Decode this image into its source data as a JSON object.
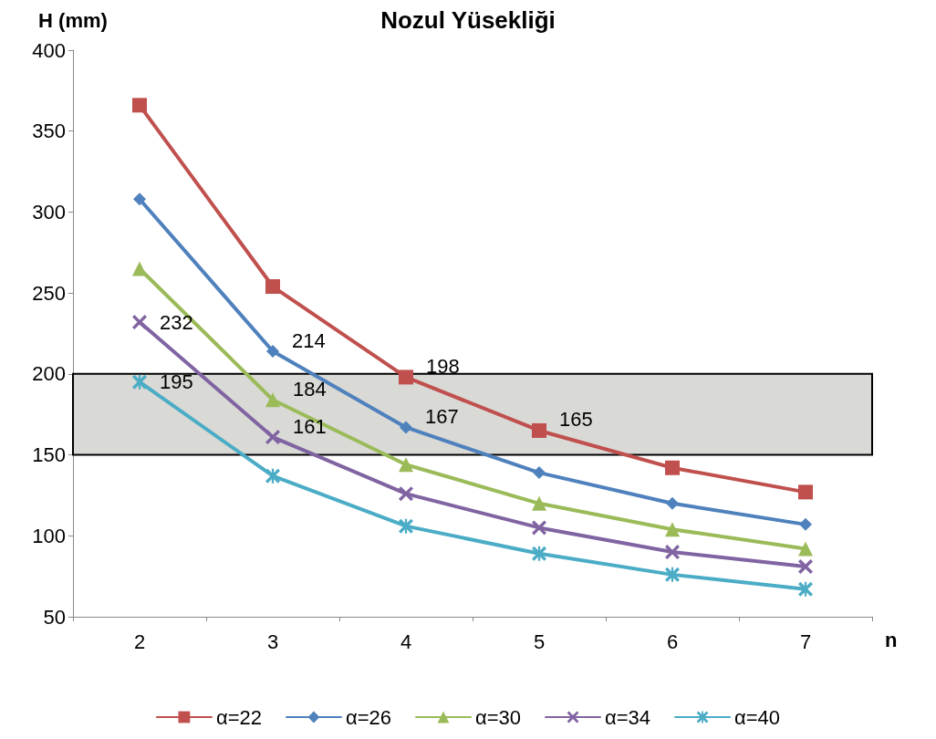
{
  "chart_data": {
    "type": "line",
    "title": "Nozul Yüsekliği",
    "ylabel": "H (mm)",
    "xlabel": "n",
    "categories": [
      "2",
      "3",
      "4",
      "5",
      "6",
      "7"
    ],
    "series": [
      {
        "name": "α=22",
        "color": "#c0504d",
        "marker": "square",
        "values": [
          366,
          254,
          198,
          165,
          142,
          127
        ],
        "value_labels": [
          null,
          null,
          "198",
          "165",
          null,
          null
        ]
      },
      {
        "name": "α=26",
        "color": "#4f81bd",
        "marker": "diamond",
        "values": [
          308,
          214,
          167,
          139,
          120,
          107
        ],
        "value_labels": [
          null,
          "214",
          "167",
          null,
          null,
          null
        ]
      },
      {
        "name": "α=30",
        "color": "#9bbb59",
        "marker": "triangle",
        "values": [
          265,
          184,
          144,
          120,
          104,
          92
        ],
        "value_labels": [
          null,
          "184",
          null,
          null,
          null,
          null
        ]
      },
      {
        "name": "α=34",
        "color": "#8064a2",
        "marker": "cross",
        "values": [
          232,
          161,
          126,
          105,
          90,
          81
        ],
        "value_labels": [
          "232",
          "161",
          null,
          null,
          null,
          null
        ]
      },
      {
        "name": "α=40",
        "color": "#4bacc6",
        "marker": "star",
        "values": [
          195,
          137,
          106,
          89,
          76,
          67
        ],
        "value_labels": [
          "195",
          null,
          null,
          null,
          null,
          null
        ]
      }
    ],
    "ylim": [
      50,
      400
    ],
    "yticks": [
      50,
      100,
      150,
      200,
      250,
      300,
      350,
      400
    ],
    "bands": [
      {
        "axis": "y",
        "from": 150,
        "to": 200,
        "color": "#d9d9d6"
      }
    ],
    "grid": false,
    "legend": "bottom",
    "line_style": "solid"
  }
}
